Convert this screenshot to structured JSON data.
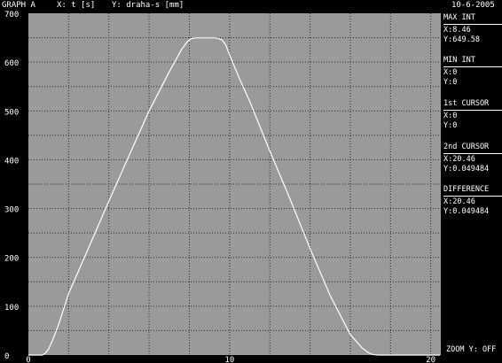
{
  "header": {
    "graph_label": "GRAPH A",
    "x_axis_label": "X: t [s]",
    "y_axis_label": "Y: draha-s [mm]",
    "date": "10-6-2005"
  },
  "panel": {
    "max_int": {
      "title": "MAX INT",
      "x": "X:8.46",
      "y": "Y:649.58"
    },
    "min_int": {
      "title": "MIN INT",
      "x": "X:0",
      "y": "Y:0"
    },
    "cursor1": {
      "title": "1st CURSOR",
      "x": "X:0",
      "y": "Y:0"
    },
    "cursor2": {
      "title": "2nd CURSOR",
      "x": "X:20.46",
      "y": "Y:0.049484"
    },
    "difference": {
      "title": "DIFFERENCE",
      "x": "X:20.46",
      "y": "Y:0.049484"
    },
    "zoom": "ZOOM Y: OFF"
  },
  "colors": {
    "screen_bg": "#000000",
    "plot_bg": "#9a9a9a",
    "grid": "#2a2a2a",
    "curve": "#ffffff",
    "text": "#ffffff"
  },
  "chart_data": {
    "type": "line",
    "xlim": [
      0,
      20.5
    ],
    "ylim": [
      0,
      700
    ],
    "x_ticks": [
      0,
      10,
      20
    ],
    "x_ticks_minor": [
      2,
      4,
      6,
      8,
      12,
      14,
      16,
      18
    ],
    "y_ticks": [
      0,
      100,
      200,
      300,
      400,
      500,
      600,
      700
    ],
    "y_ticks_minor": [
      50,
      150,
      250,
      350,
      450,
      550,
      650
    ],
    "grid": true,
    "series": [
      {
        "x": [
          0,
          0.7,
          0.85,
          1.0,
          1.2,
          1.5,
          2.0,
          3.0,
          4.0,
          5.0,
          6.0,
          7.0,
          7.6,
          7.9,
          8.1,
          8.3,
          8.5,
          9.0,
          9.3,
          9.6,
          9.8,
          10.0,
          10.5,
          11.0,
          12.0,
          13.0,
          14.0,
          15.0,
          16.0,
          16.6,
          16.9,
          17.05,
          17.2,
          17.35,
          17.5,
          20.46
        ],
        "y": [
          0,
          0,
          4,
          12,
          30,
          62,
          126,
          220,
          315,
          408,
          500,
          580,
          625,
          642,
          648,
          649.58,
          649.58,
          649.58,
          649.58,
          646,
          636,
          615,
          565,
          520,
          418,
          320,
          218,
          122,
          42,
          14,
          5,
          2,
          0.5,
          0.1,
          0.05,
          0.049484
        ]
      }
    ]
  }
}
